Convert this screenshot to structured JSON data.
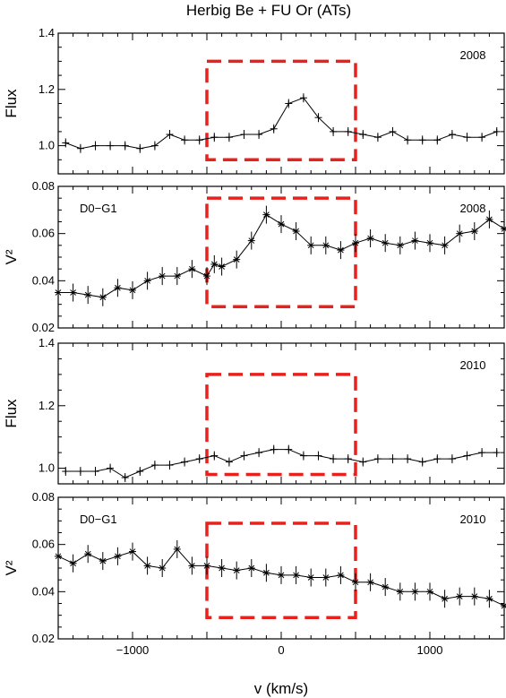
{
  "figure": {
    "title": "Herbig Be + FU Or (ATs)",
    "xlabel": "v (km/s)",
    "xticks": [
      "−1000",
      "0",
      "1000"
    ]
  },
  "chart_data": [
    {
      "type": "line",
      "ylabel": "Flux",
      "year": "2008",
      "baseline": "",
      "xlim": [
        -1500,
        1500
      ],
      "ylim": [
        0.9,
        1.4
      ],
      "yticks": [
        "1.0",
        "1.2",
        "1.4"
      ],
      "ytick_values": [
        1.0,
        1.2,
        1.4
      ],
      "marker": "plus",
      "box": {
        "x": [
          -500,
          500
        ],
        "y": [
          0.95,
          1.3
        ]
      },
      "x": [
        -1450,
        -1350,
        -1250,
        -1150,
        -1050,
        -950,
        -850,
        -750,
        -650,
        -550,
        -450,
        -350,
        -250,
        -150,
        -50,
        50,
        150,
        250,
        350,
        450,
        550,
        650,
        750,
        850,
        950,
        1050,
        1150,
        1250,
        1350,
        1450
      ],
      "y": [
        1.01,
        0.99,
        1.0,
        1.0,
        1.0,
        0.99,
        1.0,
        1.04,
        1.02,
        1.02,
        1.03,
        1.03,
        1.04,
        1.04,
        1.06,
        1.15,
        1.17,
        1.1,
        1.05,
        1.05,
        1.04,
        1.03,
        1.05,
        1.02,
        1.02,
        1.02,
        1.04,
        1.03,
        1.03,
        1.05
      ]
    },
    {
      "type": "line",
      "ylabel": "V²",
      "year": "2008",
      "baseline": "D0−G1",
      "xlim": [
        -1500,
        1500
      ],
      "ylim": [
        0.02,
        0.08
      ],
      "yticks": [
        "0.02",
        "0.04",
        "0.06",
        "0.08"
      ],
      "ytick_values": [
        0.02,
        0.04,
        0.06,
        0.08
      ],
      "marker": "star",
      "box": {
        "x": [
          -500,
          500
        ],
        "y": [
          0.029,
          0.075
        ]
      },
      "x": [
        -1500,
        -1400,
        -1300,
        -1200,
        -1100,
        -1000,
        -900,
        -800,
        -700,
        -600,
        -500,
        -450,
        -400,
        -300,
        -200,
        -100,
        0,
        100,
        200,
        300,
        400,
        500,
        600,
        700,
        800,
        900,
        1000,
        1100,
        1200,
        1300,
        1400,
        1500
      ],
      "y": [
        0.035,
        0.035,
        0.034,
        0.033,
        0.037,
        0.036,
        0.04,
        0.042,
        0.042,
        0.045,
        0.042,
        0.047,
        0.046,
        0.049,
        0.057,
        0.068,
        0.064,
        0.061,
        0.055,
        0.055,
        0.053,
        0.056,
        0.058,
        0.056,
        0.055,
        0.057,
        0.056,
        0.055,
        0.06,
        0.061,
        0.066,
        0.062
      ]
    },
    {
      "type": "line",
      "ylabel": "Flux",
      "year": "2010",
      "baseline": "",
      "xlim": [
        -1500,
        1500
      ],
      "ylim": [
        0.95,
        1.4
      ],
      "yticks": [
        "1.0",
        "1.2",
        "1.4"
      ],
      "ytick_values": [
        1.0,
        1.2,
        1.4
      ],
      "marker": "plus",
      "box": {
        "x": [
          -500,
          500
        ],
        "y": [
          0.98,
          1.3
        ]
      },
      "x": [
        -1450,
        -1350,
        -1250,
        -1150,
        -1050,
        -950,
        -850,
        -750,
        -650,
        -550,
        -450,
        -350,
        -250,
        -150,
        -50,
        50,
        150,
        250,
        350,
        450,
        550,
        650,
        750,
        850,
        950,
        1050,
        1150,
        1250,
        1350,
        1450
      ],
      "y": [
        0.99,
        0.99,
        0.99,
        1.0,
        0.97,
        0.99,
        1.01,
        1.01,
        1.02,
        1.03,
        1.04,
        1.02,
        1.04,
        1.05,
        1.06,
        1.06,
        1.04,
        1.04,
        1.03,
        1.03,
        1.02,
        1.03,
        1.03,
        1.03,
        1.02,
        1.03,
        1.03,
        1.04,
        1.05,
        1.05
      ]
    },
    {
      "type": "line",
      "ylabel": "V²",
      "year": "2010",
      "baseline": "D0−G1",
      "xlim": [
        -1500,
        1500
      ],
      "ylim": [
        0.02,
        0.08
      ],
      "yticks": [
        "0.02",
        "0.04",
        "0.06",
        "0.08"
      ],
      "ytick_values": [
        0.02,
        0.04,
        0.06,
        0.08
      ],
      "marker": "star",
      "box": {
        "x": [
          -500,
          500
        ],
        "y": [
          0.029,
          0.069
        ]
      },
      "x": [
        -1500,
        -1400,
        -1300,
        -1200,
        -1100,
        -1000,
        -900,
        -800,
        -700,
        -600,
        -500,
        -400,
        -300,
        -200,
        -100,
        0,
        100,
        200,
        300,
        400,
        500,
        600,
        700,
        800,
        900,
        1000,
        1100,
        1200,
        1300,
        1400,
        1500
      ],
      "y": [
        0.055,
        0.052,
        0.056,
        0.053,
        0.055,
        0.057,
        0.051,
        0.05,
        0.058,
        0.051,
        0.051,
        0.05,
        0.049,
        0.05,
        0.048,
        0.047,
        0.047,
        0.046,
        0.046,
        0.047,
        0.044,
        0.044,
        0.042,
        0.04,
        0.04,
        0.04,
        0.037,
        0.038,
        0.038,
        0.037,
        0.034
      ]
    }
  ]
}
